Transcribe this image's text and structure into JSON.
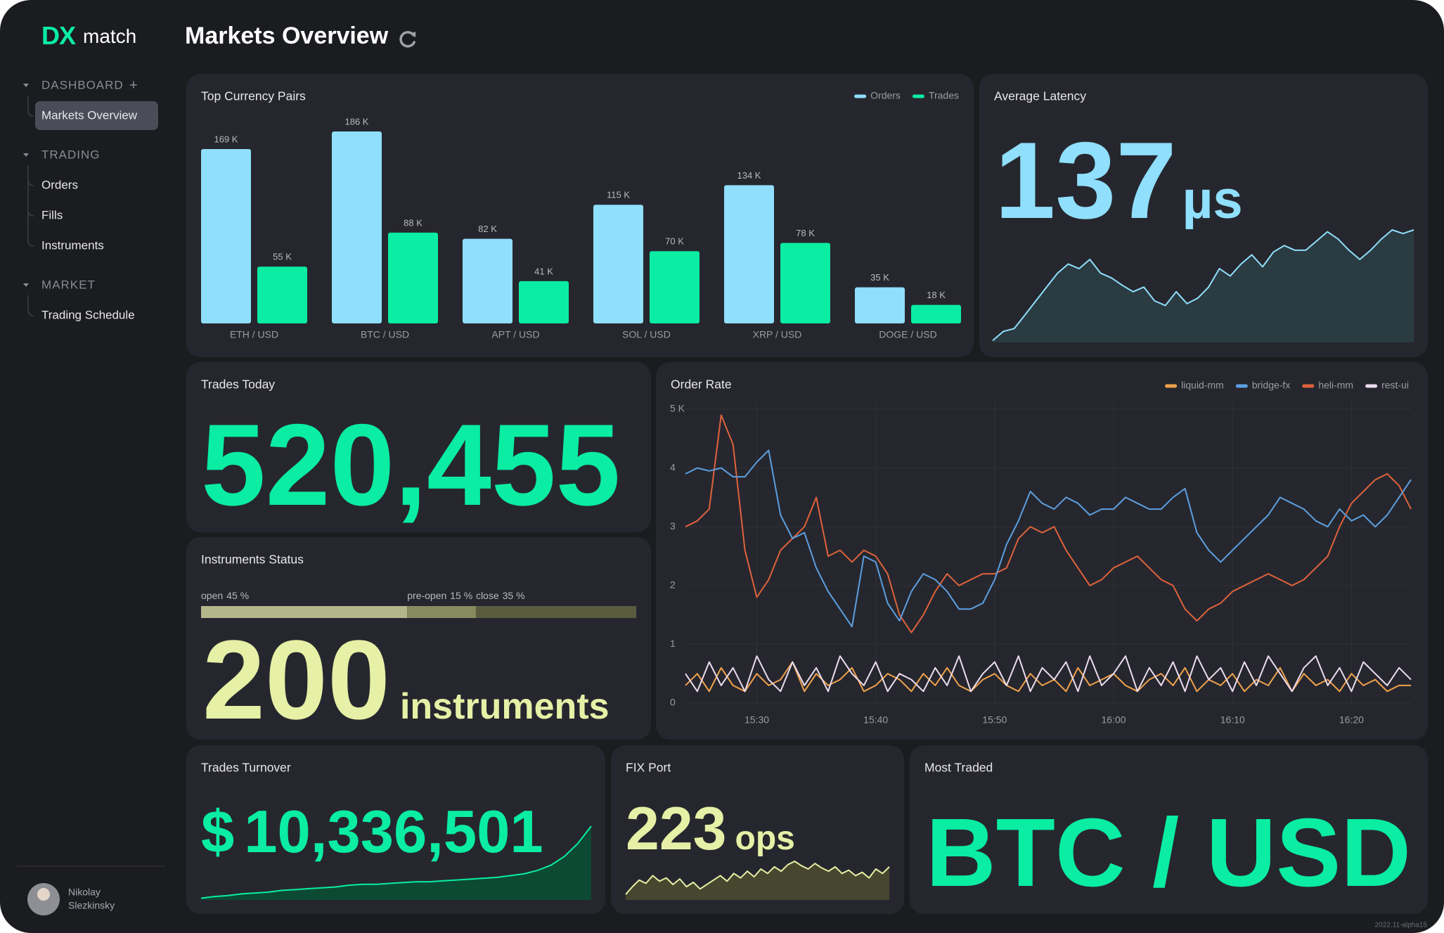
{
  "sidebar": {
    "logo": {
      "mark": "DX",
      "text": "match"
    },
    "sections": [
      {
        "title": "DASHBOARD",
        "items": [
          "Markets Overview"
        ]
      },
      {
        "title": "TRADING",
        "items": [
          "Orders",
          "Fills",
          "Instruments"
        ]
      },
      {
        "title": "MARKET",
        "items": [
          "Trading Schedule"
        ]
      }
    ],
    "user": {
      "first_name": "Nikolay",
      "last_name": "Slezkinsky"
    },
    "version": "2022.11-alpha15"
  },
  "header": {
    "title": "Markets Overview"
  },
  "panels": {
    "top_pairs": {
      "title": "Top Currency Pairs",
      "chart_data": {
        "type": "bar",
        "categories": [
          "ETH / USD",
          "BTC / USD",
          "APT / USD",
          "SOL / USD",
          "XRP / USD",
          "DOGE / USD"
        ],
        "series": [
          {
            "name": "Orders",
            "color": "#8fdffd",
            "values": [
              169000,
              186000,
              82000,
              115000,
              134000,
              35000
            ],
            "value_labels": [
              "169 K",
              "186 K",
              "82 K",
              "115 K",
              "134 K",
              "35 K"
            ]
          },
          {
            "name": "Trades",
            "color": "#0aeda2",
            "values": [
              55000,
              88000,
              41000,
              70000,
              78000,
              18000
            ],
            "value_labels": [
              "55 K",
              "88 K",
              "41 K",
              "70 K",
              "78 K",
              "18 K"
            ]
          }
        ]
      }
    },
    "latency": {
      "title": "Average Latency",
      "value": 137,
      "unit": "µs",
      "chart_data": {
        "type": "area",
        "color": "#8fdffd",
        "fill_color": "#2b3b42",
        "values": [
          2,
          12,
          15,
          30,
          45,
          60,
          75,
          85,
          80,
          90,
          75,
          70,
          62,
          55,
          60,
          45,
          40,
          55,
          42,
          48,
          60,
          80,
          72,
          85,
          95,
          82,
          98,
          105,
          100,
          100,
          110,
          120,
          112,
          100,
          90,
          100,
          112,
          122,
          118,
          122
        ]
      }
    },
    "trades_today": {
      "title": "Trades Today",
      "value": "520,455"
    },
    "instruments": {
      "title": "Instruments Status",
      "count": 200,
      "unit": "instruments",
      "chart_data": {
        "type": "stacked-bar",
        "series": [
          {
            "name": "open",
            "value": 45,
            "value_label": "45 %",
            "color": "#b3b68b"
          },
          {
            "name": "pre-open",
            "value": 15,
            "value_label": "15 %",
            "color": "#878a5f"
          },
          {
            "name": "close",
            "value": 35,
            "value_label": "35 %",
            "color": "#5a5c40"
          }
        ]
      }
    },
    "order_rate": {
      "title": "Order Rate",
      "chart_data": {
        "type": "line",
        "x": [
          "15:24",
          "15:25",
          "15:26",
          "15:27",
          "15:28",
          "15:29",
          "15:30",
          "15:31",
          "15:32",
          "15:33",
          "15:34",
          "15:35",
          "15:36",
          "15:37",
          "15:38",
          "15:39",
          "15:40",
          "15:41",
          "15:42",
          "15:43",
          "15:44",
          "15:45",
          "15:46",
          "15:47",
          "15:48",
          "15:49",
          "15:50",
          "15:51",
          "15:52",
          "15:53",
          "15:54",
          "15:55",
          "15:56",
          "15:57",
          "15:58",
          "15:59",
          "16:00",
          "16:01",
          "16:02",
          "16:03",
          "16:04",
          "16:05",
          "16:06",
          "16:07",
          "16:08",
          "16:09",
          "16:10",
          "16:11",
          "16:12",
          "16:13",
          "16:14",
          "16:15",
          "16:16",
          "16:17",
          "16:18",
          "16:19",
          "16:20",
          "16:21",
          "16:22",
          "16:23",
          "16:24",
          "16:25"
        ],
        "xlim": [
          "15:24",
          "16:25"
        ],
        "xticks": [
          "15:30",
          "15:40",
          "15:50",
          "16:00",
          "16:10",
          "16:20"
        ],
        "ylim": [
          0,
          5
        ],
        "yticks": [
          0,
          1,
          2,
          3,
          4,
          {
            "value": 5,
            "label": "5 K"
          }
        ],
        "grid": true,
        "series": [
          {
            "name": "liquid-mm",
            "color": "#f0a24c",
            "values": [
              0.3,
              0.5,
              0.2,
              0.6,
              0.3,
              0.2,
              0.5,
              0.3,
              0.4,
              0.7,
              0.2,
              0.5,
              0.3,
              0.4,
              0.6,
              0.2,
              0.3,
              0.5,
              0.4,
              0.2,
              0.5,
              0.3,
              0.6,
              0.3,
              0.2,
              0.4,
              0.5,
              0.3,
              0.2,
              0.5,
              0.3,
              0.4,
              0.2,
              0.6,
              0.3,
              0.4,
              0.5,
              0.3,
              0.2,
              0.4,
              0.5,
              0.3,
              0.6,
              0.2,
              0.4,
              0.3,
              0.5,
              0.2,
              0.4,
              0.3,
              0.6,
              0.2,
              0.5,
              0.3,
              0.4,
              0.2,
              0.5,
              0.3,
              0.4,
              0.2,
              0.3,
              0.3
            ]
          },
          {
            "name": "bridge-fx",
            "color": "#5c9fe0",
            "values": [
              3.9,
              4.0,
              3.95,
              4.0,
              3.85,
              3.85,
              4.1,
              4.3,
              3.2,
              2.8,
              2.9,
              2.3,
              1.9,
              1.6,
              1.3,
              2.5,
              2.4,
              1.7,
              1.4,
              1.9,
              2.2,
              2.1,
              1.9,
              1.6,
              1.6,
              1.7,
              2.1,
              2.7,
              3.1,
              3.6,
              3.4,
              3.3,
              3.5,
              3.4,
              3.2,
              3.3,
              3.3,
              3.5,
              3.4,
              3.3,
              3.3,
              3.5,
              3.65,
              2.9,
              2.6,
              2.4,
              2.6,
              2.8,
              3.0,
              3.2,
              3.5,
              3.4,
              3.3,
              3.1,
              3.0,
              3.3,
              3.1,
              3.2,
              3.0,
              3.2,
              3.5,
              3.8
            ]
          },
          {
            "name": "heli-mm",
            "color": "#de623c",
            "values": [
              3.0,
              3.1,
              3.3,
              4.9,
              4.4,
              2.6,
              1.8,
              2.1,
              2.6,
              2.8,
              3.0,
              3.5,
              2.5,
              2.6,
              2.4,
              2.6,
              2.5,
              2.2,
              1.5,
              1.2,
              1.5,
              1.9,
              2.2,
              2.0,
              2.1,
              2.2,
              2.2,
              2.3,
              2.8,
              3.0,
              2.9,
              3.0,
              2.6,
              2.3,
              2.0,
              2.1,
              2.3,
              2.4,
              2.5,
              2.3,
              2.1,
              2.0,
              1.6,
              1.4,
              1.6,
              1.7,
              1.9,
              2.0,
              2.1,
              2.2,
              2.1,
              2.0,
              2.1,
              2.3,
              2.5,
              3.0,
              3.4,
              3.6,
              3.8,
              3.9,
              3.7,
              3.3
            ]
          },
          {
            "name": "rest-ui",
            "color": "#ecdcef",
            "values": [
              0.5,
              0.2,
              0.7,
              0.3,
              0.6,
              0.2,
              0.8,
              0.4,
              0.2,
              0.7,
              0.3,
              0.6,
              0.2,
              0.8,
              0.5,
              0.3,
              0.7,
              0.2,
              0.5,
              0.4,
              0.2,
              0.6,
              0.3,
              0.8,
              0.2,
              0.5,
              0.7,
              0.3,
              0.8,
              0.2,
              0.6,
              0.4,
              0.7,
              0.2,
              0.8,
              0.3,
              0.5,
              0.8,
              0.2,
              0.6,
              0.3,
              0.7,
              0.2,
              0.8,
              0.4,
              0.6,
              0.2,
              0.7,
              0.3,
              0.8,
              0.5,
              0.2,
              0.6,
              0.8,
              0.3,
              0.6,
              0.2,
              0.7,
              0.5,
              0.3,
              0.6,
              0.4
            ]
          }
        ]
      }
    },
    "turnover": {
      "title": "Trades Turnover",
      "currency": "$",
      "value": "10,336,501",
      "chart_data": {
        "type": "area",
        "color": "#0aeda2",
        "fill_color": "#0c4a33",
        "values": [
          2,
          4,
          5,
          7,
          8,
          9,
          11,
          12,
          13,
          14,
          15,
          17,
          18,
          18,
          19,
          20,
          21,
          21,
          22,
          23,
          24,
          25,
          26,
          28,
          30,
          34,
          40,
          50,
          65,
          85
        ]
      }
    },
    "fix_port": {
      "title": "FIX Port",
      "value": 223,
      "unit": "ops",
      "chart_data": {
        "type": "area",
        "color": "#e6f0a6",
        "fill_color": "#47472f",
        "values": [
          5,
          12,
          18,
          15,
          22,
          17,
          20,
          14,
          19,
          12,
          16,
          10,
          14,
          18,
          22,
          17,
          24,
          20,
          26,
          21,
          28,
          24,
          30,
          26,
          32,
          35,
          31,
          28,
          33,
          29,
          26,
          30,
          24,
          27,
          22,
          25,
          20,
          28,
          24,
          30
        ]
      }
    },
    "most_traded": {
      "title": "Most Traded",
      "value": "BTC / USD"
    }
  }
}
